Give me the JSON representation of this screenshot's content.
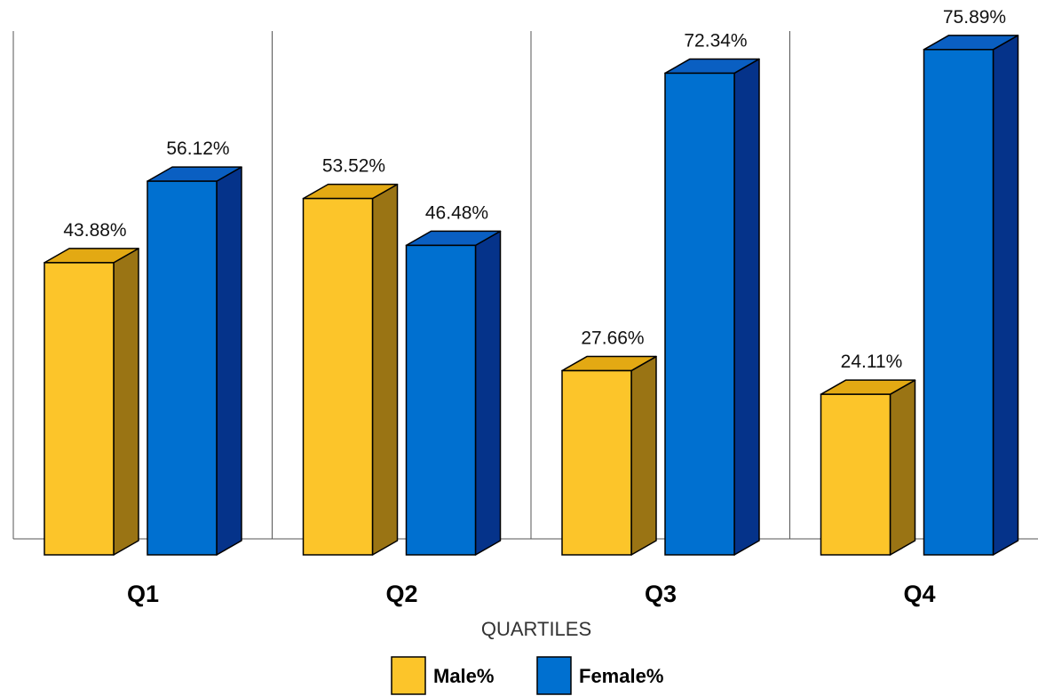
{
  "chart_data": {
    "type": "bar",
    "categories": [
      "Q1",
      "Q2",
      "Q3",
      "Q4"
    ],
    "series": [
      {
        "name": "Male%",
        "values": [
          43.88,
          53.52,
          27.66,
          24.11
        ],
        "color": "#fcc52a",
        "side_color": "#9a7414",
        "top_color": "#e3a913"
      },
      {
        "name": "Female%",
        "values": [
          56.12,
          46.48,
          72.34,
          75.89
        ],
        "color": "#0070d0",
        "side_color": "#05338a",
        "top_color": "#0a5fc2"
      }
    ],
    "value_labels": [
      [
        "43.88%",
        "53.52%",
        "27.66%",
        "24.11%"
      ],
      [
        "56.12%",
        "46.48%",
        "72.34%",
        "75.89%"
      ]
    ],
    "xlabel": "QUARTILES",
    "ylabel": "",
    "ylim": [
      0,
      80
    ],
    "grid": "vertical category separators",
    "legend_position": "bottom-center",
    "style": "3d-bar"
  }
}
